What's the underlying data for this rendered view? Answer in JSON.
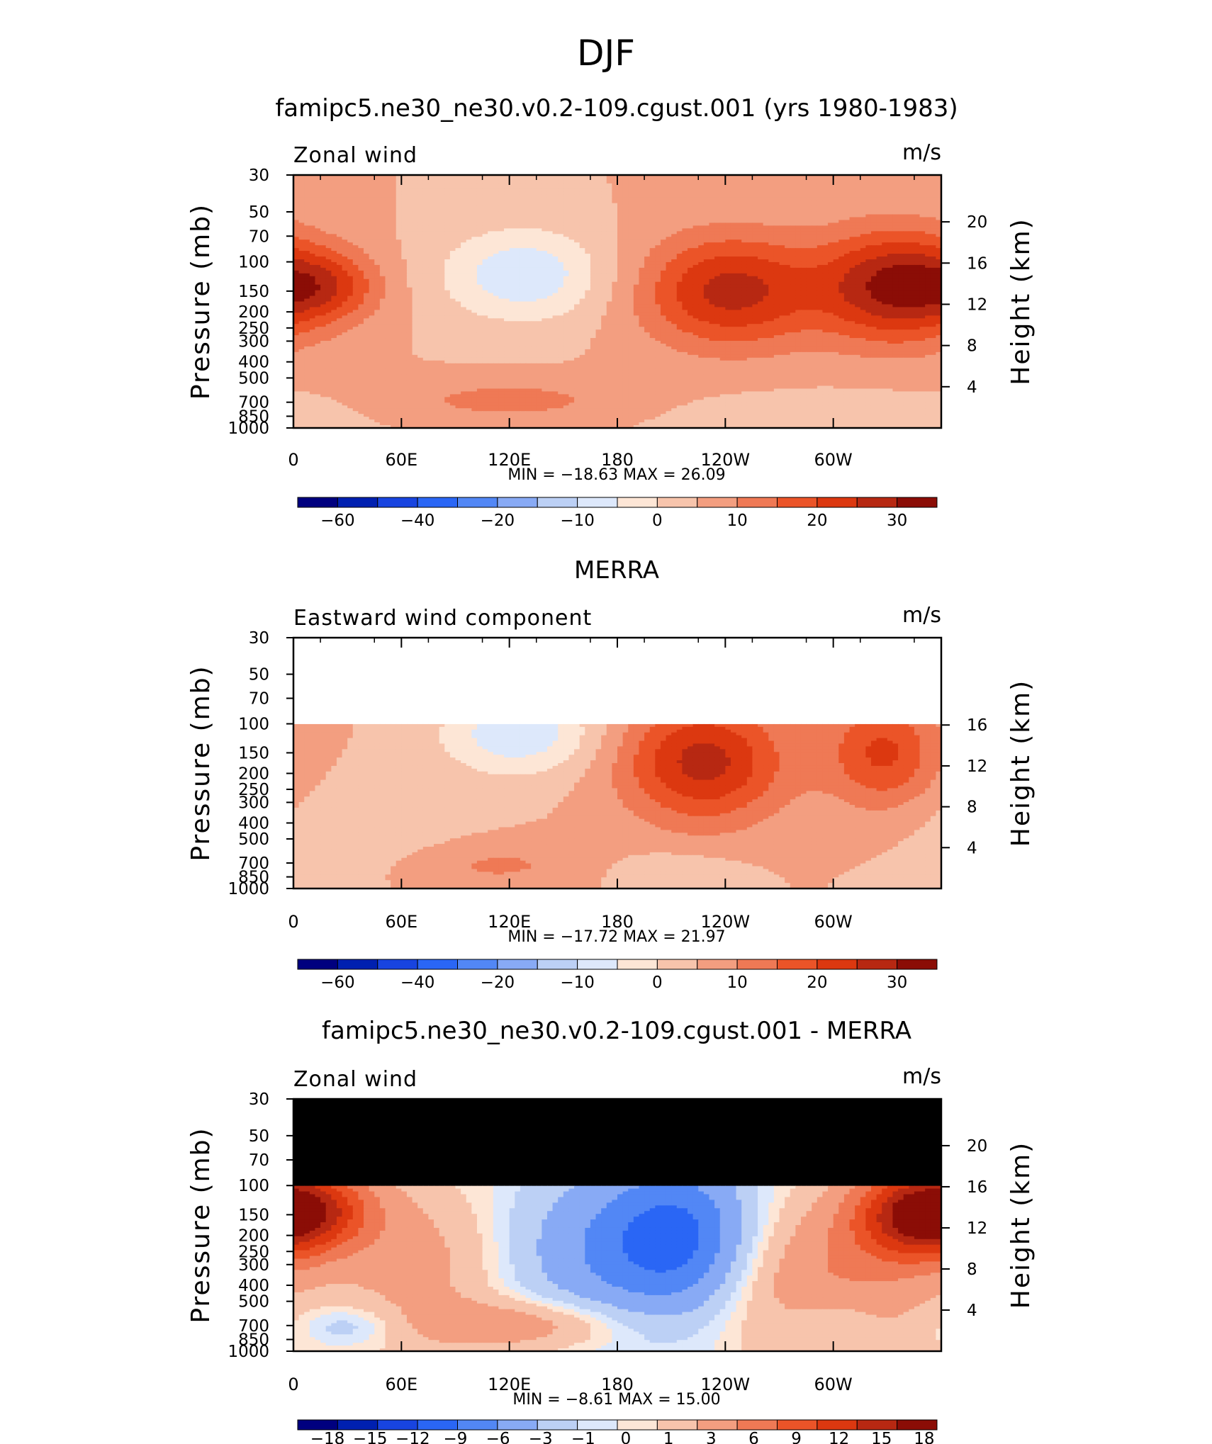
{
  "figure": {
    "title": "DJF"
  },
  "colors": {
    "model_obs_palette": [
      "#00007f",
      "#0020b0",
      "#1844e0",
      "#2a66f5",
      "#5287f5",
      "#88aaf5",
      "#bcd0f5",
      "#dde8fb",
      "#fde6d6",
      "#f7c4ac",
      "#f39e80",
      "#ef7955",
      "#eb5428",
      "#dc3810",
      "#b72812",
      "#8b0d06"
    ],
    "diff_palette": [
      "#00007f",
      "#0020b0",
      "#1844e0",
      "#2a66f5",
      "#5287f5",
      "#88aaf5",
      "#bcd0f5",
      "#dde8fb",
      "#fde6d6",
      "#f7c4ac",
      "#f39e80",
      "#ef7955",
      "#eb5428",
      "#dc3810",
      "#b72812",
      "#8b0d06"
    ],
    "missing": "#000000"
  },
  "chart_data": [
    {
      "type": "heatmap",
      "title": "famipc5.ne30_ne30.v0.2-109.cgust.001 (yrs 1980-1983)",
      "left_label": "Zonal wind",
      "units": "m/s",
      "ylabel": "Pressure (mb)",
      "y2label": "Height (km)",
      "x_ticks": [
        "0",
        "60E",
        "120E",
        "180",
        "120W",
        "60W"
      ],
      "y_ticks": [
        "30",
        "50",
        "70",
        "100",
        "150",
        "200",
        "250",
        "300",
        "400",
        "500",
        "700",
        "850",
        "1000"
      ],
      "y2_ticks": [
        "20",
        "16",
        "12",
        "8",
        "4"
      ],
      "min_label": "MIN",
      "min_value": "−18.63",
      "max_label": "MAX",
      "max_value": "26.09",
      "colorbar_labels": [
        "−60",
        "−40",
        "−20",
        "−10",
        "0",
        "10",
        "20",
        "30"
      ],
      "data_ptop_mb": 30,
      "features": [
        {
          "lon": 18,
          "p": 140,
          "amp": 14,
          "slon": 22,
          "sp": 0.35
        },
        {
          "lon": 128,
          "p": 120,
          "amp": -14,
          "slon": 32,
          "sp": 0.45
        },
        {
          "lon": 243,
          "p": 150,
          "amp": 22,
          "slon": 35,
          "sp": 0.55
        },
        {
          "lon": 335,
          "p": 140,
          "amp": 26,
          "slon": 30,
          "sp": 0.55
        },
        {
          "lon": 120,
          "p": 680,
          "amp": 7,
          "slon": 45,
          "sp": 0.2
        },
        {
          "lon": 300,
          "p": 850,
          "amp": -3,
          "slon": 60,
          "sp": 0.25
        }
      ]
    },
    {
      "type": "heatmap",
      "title": "MERRA",
      "left_label": "Eastward wind component",
      "units": "m/s",
      "ylabel": "Pressure (mb)",
      "y2label": "Height (km)",
      "x_ticks": [
        "0",
        "60E",
        "120E",
        "180",
        "120W",
        "60W"
      ],
      "y_ticks": [
        "30",
        "50",
        "70",
        "100",
        "150",
        "200",
        "250",
        "300",
        "400",
        "500",
        "700",
        "850",
        "1000"
      ],
      "y2_ticks": [
        "16",
        "12",
        "8",
        "4"
      ],
      "min_label": "MIN",
      "min_value": "−17.72",
      "max_label": "MAX",
      "max_value": "21.97",
      "colorbar_labels": [
        "−60",
        "−40",
        "−20",
        "−10",
        "0",
        "10",
        "20",
        "30"
      ],
      "data_ptop_mb": 100,
      "features": [
        {
          "lon": 125,
          "p": 115,
          "amp": -14,
          "slon": 30,
          "sp": 0.4
        },
        {
          "lon": 228,
          "p": 170,
          "amp": 22,
          "slon": 32,
          "sp": 0.6
        },
        {
          "lon": 328,
          "p": 150,
          "amp": 16,
          "slon": 22,
          "sp": 0.55
        },
        {
          "lon": 110,
          "p": 720,
          "amp": 6,
          "slon": 40,
          "sp": 0.25
        },
        {
          "lon": 210,
          "p": 800,
          "amp": -5,
          "slon": 25,
          "sp": 0.2
        },
        {
          "lon": 40,
          "p": 450,
          "amp": -4,
          "slon": 40,
          "sp": 0.5
        }
      ]
    },
    {
      "type": "heatmap",
      "title": "famipc5.ne30_ne30.v0.2-109.cgust.001 - MERRA",
      "left_label": "Zonal wind",
      "units": "m/s",
      "ylabel": "Pressure (mb)",
      "y2label": "Height (km)",
      "x_ticks": [
        "0",
        "60E",
        "120E",
        "180",
        "120W",
        "60W"
      ],
      "y_ticks": [
        "30",
        "50",
        "70",
        "100",
        "150",
        "200",
        "250",
        "300",
        "400",
        "500",
        "700",
        "850",
        "1000"
      ],
      "y2_ticks": [
        "20",
        "16",
        "12",
        "8",
        "4"
      ],
      "min_label": "MIN",
      "min_value": "−8.61",
      "max_label": "MAX",
      "max_value": "15.00",
      "colorbar_labels": [
        "−18",
        "−15",
        "−12",
        "−9",
        "−6",
        "−3",
        "−1",
        "0",
        "1",
        "3",
        "6",
        "9",
        "12",
        "15",
        "18"
      ],
      "data_ptop_mb": 100,
      "features": [
        {
          "lon": 10,
          "p": 140,
          "amp": 12,
          "slon": 25,
          "sp": 0.4
        },
        {
          "lon": 345,
          "p": 150,
          "amp": 14,
          "slon": 25,
          "sp": 0.45
        },
        {
          "lon": 215,
          "p": 200,
          "amp": -8.5,
          "slon": 28,
          "sp": 0.7
        },
        {
          "lon": 170,
          "p": 250,
          "amp": -5,
          "slon": 40,
          "sp": 0.8
        },
        {
          "lon": 300,
          "p": 400,
          "amp": 6,
          "slon": 40,
          "sp": 0.8
        },
        {
          "lon": 70,
          "p": 300,
          "amp": 4,
          "slon": 35,
          "sp": 0.8
        },
        {
          "lon": 130,
          "p": 700,
          "amp": 5,
          "slon": 40,
          "sp": 0.25
        },
        {
          "lon": 30,
          "p": 700,
          "amp": -3,
          "slon": 20,
          "sp": 0.2
        },
        {
          "lon": 300,
          "p": 650,
          "amp": -3,
          "slon": 20,
          "sp": 0.3
        }
      ]
    }
  ]
}
